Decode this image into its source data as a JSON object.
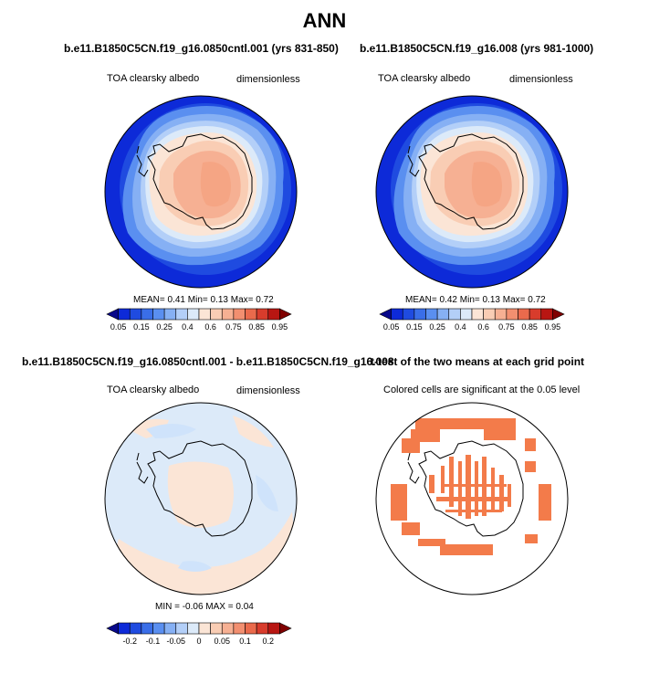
{
  "main_title": "ANN",
  "panels": [
    {
      "title": "b.e11.B1850C5CN.f19_g16.0850cntl.001 (yrs 831-850)",
      "left_label": "TOA clearsky albedo",
      "right_label": "dimensionless",
      "stats": {
        "mean_label": "MEAN=",
        "mean": "0.41",
        "min_label": "Min=",
        "min": "0.13",
        "max_label": "Max=",
        "max": "0.72"
      },
      "colorbar": {
        "colors": [
          "#08088a",
          "#0d2ad8",
          "#1f4be0",
          "#3a6ee8",
          "#5a8ff0",
          "#86b0f4",
          "#b3cff8",
          "#dceaf9",
          "#fbe5d6",
          "#f9cdb4",
          "#f6b093",
          "#f28f70",
          "#ea6a4c",
          "#d83c2c",
          "#b81612",
          "#800000"
        ],
        "labels": [
          "0.05",
          "0.15",
          "0.25",
          "0.4",
          "0.6",
          "0.75",
          "0.85",
          "0.95"
        ]
      }
    },
    {
      "title": "b.e11.B1850C5CN.f19_g16.008 (yrs 981-1000)",
      "left_label": "TOA clearsky albedo",
      "right_label": "dimensionless",
      "stats": {
        "mean_label": "MEAN=",
        "mean": "0.42",
        "min_label": "Min=",
        "min": "0.13",
        "max_label": "Max=",
        "max": "0.72"
      },
      "colorbar": {
        "colors": [
          "#08088a",
          "#0d2ad8",
          "#1f4be0",
          "#3a6ee8",
          "#5a8ff0",
          "#86b0f4",
          "#b3cff8",
          "#dceaf9",
          "#fbe5d6",
          "#f9cdb4",
          "#f6b093",
          "#f28f70",
          "#ea6a4c",
          "#d83c2c",
          "#b81612",
          "#800000"
        ],
        "labels": [
          "0.05",
          "0.15",
          "0.25",
          "0.4",
          "0.6",
          "0.75",
          "0.85",
          "0.95"
        ]
      }
    },
    {
      "title": "b.e11.B1850C5CN.f19_g16.0850cntl.001 - b.e11.B1850C5CN.f19_g16.008",
      "left_label": "TOA clearsky albedo",
      "right_label": "dimensionless",
      "stats_text": "MIN =  -0.06 MAX =  0.04",
      "colorbar": {
        "colors": [
          "#08088a",
          "#0d2ad8",
          "#1f4be0",
          "#3a6ee8",
          "#5a8ff0",
          "#86b0f4",
          "#b3cff8",
          "#dceaf9",
          "#fbe5d6",
          "#f9cdb4",
          "#f6b093",
          "#f28f70",
          "#ea6a4c",
          "#d83c2c",
          "#b81612",
          "#800000"
        ],
        "labels": [
          "-0.2",
          "-0.1",
          "-0.05",
          "0",
          "0.05",
          "0.1",
          "0.2"
        ]
      }
    },
    {
      "title": "t-test of the two means at each grid point",
      "label": "Colored cells are significant at the 0.05 level"
    }
  ],
  "colors": {
    "ocean_far": "#0d2ad8",
    "ocean_mid": "#3a6ee8",
    "ocean_near": "#86b0f4",
    "sea_ice": "#dceaf9",
    "coast_band": "#fbe5d6",
    "ice_sheet": "#f6b093",
    "ice_interior": "#f28f70",
    "diff_neg": "#cfe3fb",
    "diff_pos": "#fbe5d6",
    "significant": "#f37b4a"
  }
}
